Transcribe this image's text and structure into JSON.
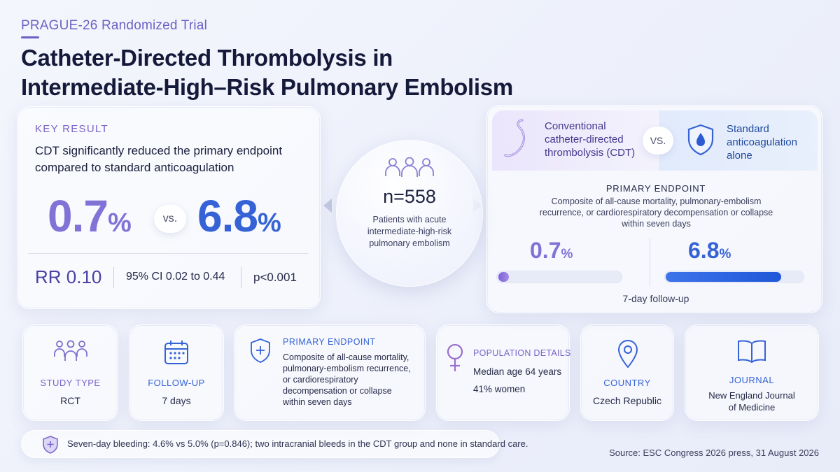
{
  "header": {
    "eyebrow": "PRAGUE-26 Randomized Trial",
    "title_line1": "Catheter-Directed Thrombolysis in",
    "title_line2": "Intermediate-High–Risk Pulmonary Embolism"
  },
  "key_result": {
    "label": "KEY RESULT",
    "text": "CDT significantly reduced the primary endpoint compared to standard anticoagulation",
    "value_a": "0.7",
    "value_b": "6.8",
    "pct": "%",
    "vs": "vs.",
    "rr": "RR 0.10",
    "ci": "95% CI 0.02 to 0.44",
    "p": "p<0.001"
  },
  "population": {
    "n": "n=558",
    "desc": "Patients with acute intermediate-high-risk pulmonary embolism"
  },
  "comparison": {
    "arm_a": "Conventional catheter-directed thrombolysis (CDT)",
    "vs": "VS.",
    "arm_b": "Standard anticoagulation alone",
    "primary_label": "PRIMARY ENDPOINT",
    "primary_desc": "Composite of all-cause mortality, pulmonary-embolism recurrence, or cardiorespiratory decompensation or collapse within seven days",
    "rate_a": "0.7",
    "rate_b": "6.8",
    "pct": "%",
    "fill_a_percent": 0.7,
    "fill_b_percent": 6.8,
    "followup": "7-day follow-up"
  },
  "cards": {
    "study_type_label": "STUDY TYPE",
    "study_type_value": "RCT",
    "followup_label": "FOLLOW-UP",
    "followup_value": "7 days",
    "endpoint_label": "PRIMARY ENDPOINT",
    "endpoint_value": "Composite of all-cause mortality, pulmonary-embolism recurrence, or cardiorespiratory decompensation or collapse within seven days",
    "population_label": "POPULATION DETAILS",
    "population_age": "Median age 64 years",
    "population_women": "41% women",
    "country_label": "COUNTRY",
    "country_value": "Czech Republic",
    "journal_label": "JOURNAL",
    "journal_value": "New England Journal of Medicine"
  },
  "footer": {
    "note": "Seven-day bleeding: 4.6% vs 5.0% (p=0.846); two intracranial bleeds in the CDT group and none in standard care.",
    "source": "Source: ESC Congress 2026 press, 31 August 2026"
  },
  "colors": {
    "purple": "#7a63c9",
    "blue": "#3563d6",
    "text": "#1e2340"
  },
  "icons": [
    "people-icon",
    "catheter-icon",
    "shield-drop-icon",
    "calendar-icon",
    "shield-plus-icon",
    "female-icon",
    "location-pin-icon",
    "book-icon",
    "shield-note-icon"
  ]
}
